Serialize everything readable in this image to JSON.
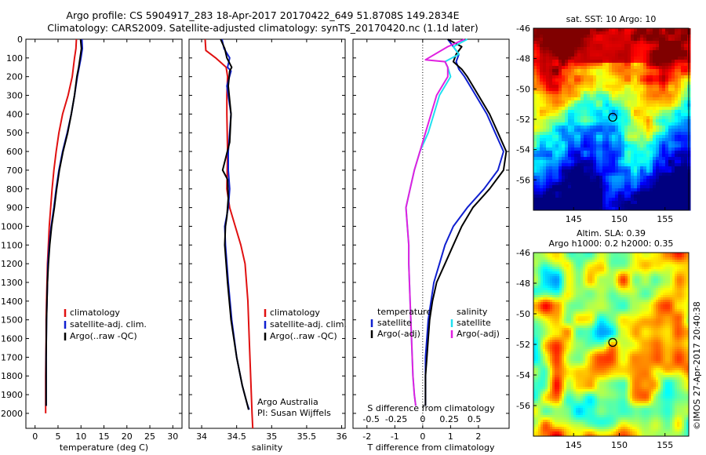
{
  "header": {
    "line1": "Argo profile: CS 5904917_283 18-Apr-2017 20170422_649 51.8708S 149.2834E",
    "line2": "Climatology: CARS2009. Satellite-adjusted climatology: synTS_20170420.nc (1.1d later)"
  },
  "colors": {
    "climatology": "#e01010",
    "satellite": "#1020d0",
    "argo": "#000000",
    "sat_sal": "#20e0f0",
    "argo_sal": "#e020e0"
  },
  "depth_ticks": [
    0,
    100,
    200,
    300,
    400,
    500,
    600,
    700,
    800,
    900,
    1000,
    1100,
    1200,
    1300,
    1400,
    1500,
    1600,
    1700,
    1800,
    1900,
    2000
  ],
  "chart_data": [
    {
      "type": "line",
      "id": "temperature",
      "xlabel": "temperature (deg C)",
      "xticks": [
        0,
        5,
        10,
        15,
        20,
        25,
        30
      ],
      "xlim": [
        -2,
        32
      ],
      "ylim": [
        2080,
        0
      ],
      "legend": [
        "climatology",
        "satellite-adj. clim.",
        "Argo(..raw -QC)"
      ],
      "series": [
        {
          "name": "climatology",
          "color": "#e01010",
          "x": [
            9.0,
            8.9,
            8.6,
            8.1,
            7.2,
            6.0,
            5.2,
            4.6,
            4.1,
            3.7,
            3.4,
            3.1,
            2.9,
            2.7,
            2.6,
            2.5,
            2.4,
            2.4,
            2.3,
            2.3
          ],
          "y": [
            0,
            50,
            100,
            200,
            300,
            400,
            500,
            600,
            700,
            800,
            900,
            1000,
            1100,
            1200,
            1300,
            1400,
            1500,
            1600,
            1800,
            2000
          ]
        },
        {
          "name": "satellite-adj. clim.",
          "color": "#1020d0",
          "x": [
            10.2,
            10.3,
            10.0,
            9.6,
            9.2,
            8.6,
            7.9,
            7.0,
            6.0,
            5.2,
            4.6,
            4.1,
            3.5,
            3.1,
            2.8,
            2.7,
            2.6,
            2.5,
            2.4,
            2.4
          ],
          "y": [
            0,
            50,
            100,
            150,
            200,
            300,
            400,
            500,
            600,
            700,
            800,
            900,
            1000,
            1100,
            1200,
            1300,
            1400,
            1500,
            1700,
            1960
          ]
        },
        {
          "name": "Argo(..raw -QC)",
          "color": "#000000",
          "x": [
            9.9,
            10.1,
            9.8,
            9.5,
            9.1,
            8.6,
            7.9,
            7.1,
            6.1,
            5.3,
            4.7,
            4.2,
            3.6,
            3.2,
            2.9,
            2.7,
            2.6,
            2.5,
            2.4,
            2.4
          ],
          "y": [
            0,
            50,
            100,
            150,
            200,
            300,
            400,
            500,
            600,
            700,
            800,
            900,
            1000,
            1100,
            1200,
            1300,
            1400,
            1500,
            1700,
            1960
          ]
        }
      ]
    },
    {
      "type": "line",
      "id": "salinity",
      "xlabel": "salinity",
      "xticks": [
        34,
        34.5,
        35,
        35.5,
        36
      ],
      "xlim": [
        33.82,
        36.05
      ],
      "ylim": [
        2080,
        0
      ],
      "legend": [
        "climatology",
        "satellite-adj. clim.",
        "Argo(..raw -QC)"
      ],
      "annotation": [
        "Argo Australia",
        "PI: Susan Wijffels"
      ],
      "series": [
        {
          "name": "climatology",
          "color": "#e01010",
          "x": [
            34.05,
            34.06,
            34.2,
            34.35,
            34.37,
            34.36,
            34.36,
            34.37,
            34.36,
            34.4,
            34.48,
            34.56,
            34.62,
            34.66,
            34.68,
            34.7,
            34.72,
            34.73
          ],
          "y": [
            0,
            60,
            100,
            150,
            200,
            300,
            400,
            600,
            800,
            900,
            1000,
            1100,
            1200,
            1400,
            1600,
            1800,
            2000,
            2080
          ]
        },
        {
          "name": "satellite-adj. clim.",
          "color": "#1020d0",
          "x": [
            34.29,
            34.32,
            34.4,
            34.37,
            34.42,
            34.36,
            34.42,
            34.38,
            34.38,
            34.4,
            34.38,
            34.33,
            34.34,
            34.38,
            34.43,
            34.5,
            34.58,
            34.65,
            34.68
          ],
          "y": [
            0,
            50,
            100,
            150,
            170,
            250,
            400,
            600,
            700,
            800,
            900,
            1000,
            1100,
            1300,
            1500,
            1700,
            1850,
            1950,
            1980
          ]
        },
        {
          "name": "Argo(..raw -QC)",
          "color": "#000000",
          "x": [
            34.27,
            34.33,
            34.36,
            34.43,
            34.4,
            34.38,
            34.42,
            34.4,
            34.3,
            34.37,
            34.38,
            34.36,
            34.34,
            34.33,
            34.37,
            34.42,
            34.5,
            34.58,
            34.65,
            34.67
          ],
          "y": [
            0,
            50,
            100,
            150,
            170,
            250,
            400,
            550,
            700,
            750,
            850,
            950,
            1000,
            1100,
            1300,
            1500,
            1700,
            1850,
            1950,
            1980
          ]
        }
      ]
    },
    {
      "type": "line",
      "id": "difference",
      "xlabel": "T difference from climatology",
      "xlabel2": "S difference from climatology",
      "xticks": [
        -2,
        -1,
        0,
        1,
        2
      ],
      "sticks": [
        "-0.5",
        "-0.25",
        "0",
        "0.25",
        "0.5"
      ],
      "xlim": [
        -2.5,
        3.1
      ],
      "ylim": [
        2080,
        0
      ],
      "legend_t": [
        "temperature",
        "satellite",
        "Argo(-adj)"
      ],
      "legend_s": [
        "salinity",
        "satellite",
        "Argo(-adj)"
      ],
      "series": [
        {
          "name": "temperature satellite",
          "color": "#1020d0",
          "x": [
            0.9,
            1.1,
            1.3,
            1.2,
            1.3,
            1.5,
            1.9,
            2.3,
            2.6,
            2.9,
            2.7,
            2.2,
            1.6,
            1.1,
            0.8,
            0.6,
            0.4,
            0.3,
            0.2,
            0.15,
            0.1,
            0.1,
            0.1
          ],
          "y": [
            0,
            40,
            80,
            120,
            160,
            200,
            300,
            400,
            500,
            600,
            700,
            800,
            900,
            1000,
            1100,
            1200,
            1300,
            1400,
            1500,
            1600,
            1700,
            1800,
            1960
          ]
        },
        {
          "name": "temperature Argo(-adj)",
          "color": "#000000",
          "x": [
            0.9,
            1.4,
            1.2,
            1.1,
            1.4,
            1.6,
            2.0,
            2.4,
            2.7,
            3.0,
            2.9,
            2.4,
            1.8,
            1.4,
            1.1,
            0.8,
            0.5,
            0.35,
            0.25,
            0.2,
            0.15,
            0.1,
            0.1
          ],
          "y": [
            0,
            40,
            80,
            120,
            160,
            200,
            300,
            400,
            500,
            600,
            700,
            800,
            900,
            1000,
            1100,
            1200,
            1300,
            1400,
            1500,
            1600,
            1700,
            1800,
            1960
          ]
        },
        {
          "name": "salinity satellite",
          "color": "#20e0f0",
          "x": [
            1.6,
            1.1,
            1.3,
            0.8,
            0.9,
            1.0,
            0.6,
            0.4,
            0.2,
            -0.1,
            -0.3,
            -0.45,
            -0.6,
            -0.55,
            -0.5,
            -0.5,
            -0.45,
            -0.4,
            -0.35,
            -0.3,
            -0.25
          ],
          "y": [
            0,
            40,
            80,
            120,
            150,
            200,
            300,
            400,
            500,
            600,
            700,
            800,
            900,
            1000,
            1100,
            1200,
            1400,
            1600,
            1800,
            1900,
            1960
          ]
        },
        {
          "name": "salinity Argo(-adj)",
          "color": "#e020e0",
          "x": [
            1.5,
            0.9,
            0.1,
            0.8,
            0.9,
            0.9,
            0.5,
            0.3,
            0.1,
            -0.1,
            -0.3,
            -0.45,
            -0.6,
            -0.55,
            -0.5,
            -0.5,
            -0.45,
            -0.4,
            -0.35,
            -0.3,
            -0.25
          ],
          "y": [
            0,
            40,
            110,
            120,
            150,
            200,
            300,
            400,
            500,
            600,
            700,
            800,
            900,
            1000,
            1100,
            1200,
            1400,
            1600,
            1800,
            1900,
            1960
          ]
        }
      ]
    }
  ],
  "maps": {
    "sst": {
      "title": "sat. SST: 10 Argo: 10",
      "yticks": [
        "-46",
        "-48",
        "-50",
        "-52",
        "-54",
        "-56"
      ],
      "xticks": [
        "145",
        "150",
        "155"
      ]
    },
    "sla": {
      "title1": "Altim. SLA: 0.39",
      "title2": "Argo h1000: 0.2 h2000: 0.35",
      "yticks": [
        "-46",
        "-48",
        "-50",
        "-52",
        "-54",
        "-56"
      ],
      "xticks": [
        "145",
        "150",
        "155"
      ]
    },
    "footer": "©IMOS 27-Apr-2017 20:40:38"
  }
}
